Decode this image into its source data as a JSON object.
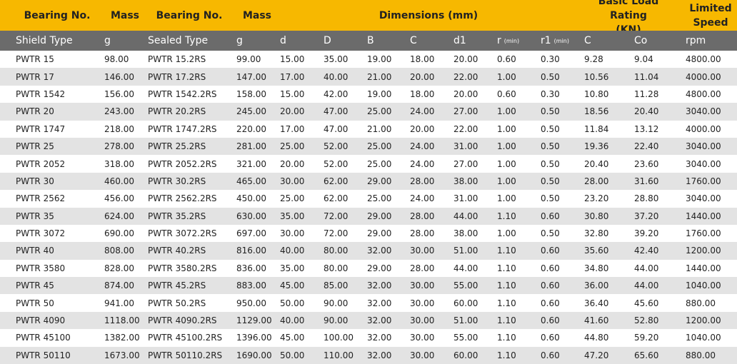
{
  "header_top": {
    "bearing_no_1": "Bearing No.",
    "mass_1": "Mass",
    "bearing_no_2": "Bearing No.",
    "mass_2": "Mass",
    "dimensions": "Dimensions (mm)",
    "basic_load_rating_line1": "Basic Load Rating",
    "basic_load_rating_line2": "(KN)",
    "limited_line1": "Limited",
    "limited_line2": "Speed"
  },
  "header_sub": {
    "shield_type": "Shield Type",
    "g1": "g",
    "sealed_type": "Sealed Type",
    "g2": "g",
    "d": "d",
    "D": "D",
    "B": "B",
    "C": "C",
    "d1": "d1",
    "r": "r",
    "r_min": "(min)",
    "r1": "r1",
    "r1_min": "(min)",
    "C_load": "C",
    "Co": "Co",
    "rpm": "rpm"
  },
  "rows": [
    [
      "PWTR 15",
      "98.00",
      "PWTR 15.2RS",
      "99.00",
      "15.00",
      "35.00",
      "19.00",
      "18.00",
      "20.00",
      "0.60",
      "0.30",
      "9.28",
      "9.04",
      "4800.00"
    ],
    [
      "PWTR 17",
      "146.00",
      "PWTR 17.2RS",
      "147.00",
      "17.00",
      "40.00",
      "21.00",
      "20.00",
      "22.00",
      "1.00",
      "0.50",
      "10.56",
      "11.04",
      "4000.00"
    ],
    [
      "PWTR 1542",
      "156.00",
      "PWTR 1542.2RS",
      "158.00",
      "15.00",
      "42.00",
      "19.00",
      "18.00",
      "20.00",
      "0.60",
      "0.30",
      "10.80",
      "11.28",
      "4800.00"
    ],
    [
      "PWTR 20",
      "243.00",
      "PWTR 20.2RS",
      "245.00",
      "20.00",
      "47.00",
      "25.00",
      "24.00",
      "27.00",
      "1.00",
      "0.50",
      "18.56",
      "20.40",
      "3040.00"
    ],
    [
      "PWTR 1747",
      "218.00",
      "PWTR 1747.2RS",
      "220.00",
      "17.00",
      "47.00",
      "21.00",
      "20.00",
      "22.00",
      "1.00",
      "0.50",
      "11.84",
      "13.12",
      "4000.00"
    ],
    [
      "PWTR 25",
      "278.00",
      "PWTR 25.2RS",
      "281.00",
      "25.00",
      "52.00",
      "25.00",
      "24.00",
      "31.00",
      "1.00",
      "0.50",
      "19.36",
      "22.40",
      "3040.00"
    ],
    [
      "PWTR 2052",
      "318.00",
      "PWTR 2052.2RS",
      "321.00",
      "20.00",
      "52.00",
      "25.00",
      "24.00",
      "27.00",
      "1.00",
      "0.50",
      "20.40",
      "23.60",
      "3040.00"
    ],
    [
      "PWTR 30",
      "460.00",
      "PWTR 30.2RS",
      "465.00",
      "30.00",
      "62.00",
      "29.00",
      "28.00",
      "38.00",
      "1.00",
      "0.50",
      "28.00",
      "31.60",
      "1760.00"
    ],
    [
      "PWTR 2562",
      "456.00",
      "PWTR 2562.2RS",
      "450.00",
      "25.00",
      "62.00",
      "25.00",
      "24.00",
      "31.00",
      "1.00",
      "0.50",
      "23.20",
      "28.80",
      "3040.00"
    ],
    [
      "PWTR 35",
      "624.00",
      "PWTR 35.2RS",
      "630.00",
      "35.00",
      "72.00",
      "29.00",
      "28.00",
      "44.00",
      "1.10",
      "0.60",
      "30.80",
      "37.20",
      "1440.00"
    ],
    [
      "PWTR 3072",
      "690.00",
      "PWTR 3072.2RS",
      "697.00",
      "30.00",
      "72.00",
      "29.00",
      "28.00",
      "38.00",
      "1.00",
      "0.50",
      "32.80",
      "39.20",
      "1760.00"
    ],
    [
      "PWTR 40",
      "808.00",
      "PWTR 40.2RS",
      "816.00",
      "40.00",
      "80.00",
      "32.00",
      "30.00",
      "51.00",
      "1.10",
      "0.60",
      "35.60",
      "42.40",
      "1200.00"
    ],
    [
      "PWTR 3580",
      "828.00",
      "PWTR 3580.2RS",
      "836.00",
      "35.00",
      "80.00",
      "29.00",
      "28.00",
      "44.00",
      "1.10",
      "0.60",
      "34.80",
      "44.00",
      "1440.00"
    ],
    [
      "PWTR 45",
      "874.00",
      "PWTR 45.2RS",
      "883.00",
      "45.00",
      "85.00",
      "32.00",
      "30.00",
      "55.00",
      "1.10",
      "0.60",
      "36.00",
      "44.00",
      "1040.00"
    ],
    [
      "PWTR 50",
      "941.00",
      "PWTR 50.2RS",
      "950.00",
      "50.00",
      "90.00",
      "32.00",
      "30.00",
      "60.00",
      "1.10",
      "0.60",
      "36.40",
      "45.60",
      "880.00"
    ],
    [
      "PWTR 4090",
      "1118.00",
      "PWTR 4090.2RS",
      "1129.00",
      "40.00",
      "90.00",
      "32.00",
      "30.00",
      "51.00",
      "1.10",
      "0.60",
      "41.60",
      "52.80",
      "1200.00"
    ],
    [
      "PWTR 45100",
      "1382.00",
      "PWTR 45100.2RS",
      "1396.00",
      "45.00",
      "100.00",
      "32.00",
      "30.00",
      "55.00",
      "1.10",
      "0.60",
      "44.80",
      "59.20",
      "1040.00"
    ],
    [
      "PWTR 50110",
      "1673.00",
      "PWTR 50110.2RS",
      "1690.00",
      "50.00",
      "110.00",
      "32.00",
      "30.00",
      "60.00",
      "1.10",
      "0.60",
      "47.20",
      "65.60",
      "880.00"
    ]
  ]
}
